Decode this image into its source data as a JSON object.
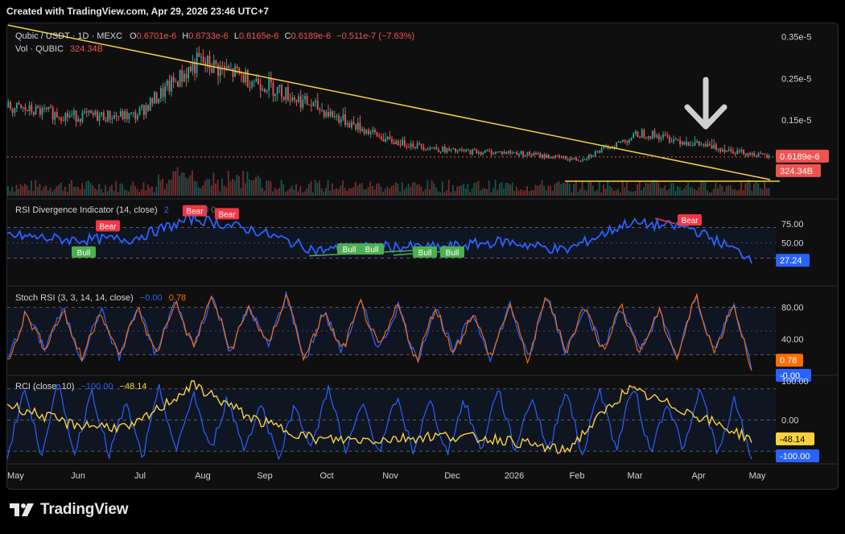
{
  "header": {
    "created_text": "Created with TradingView.com, Apr 29, 2026 23:46 UTC+7"
  },
  "footer": {
    "brand": "TradingView"
  },
  "colors": {
    "up": "#26a69a",
    "down": "#ef5350",
    "rsi": "#2962ff",
    "stoch_k": "#2962ff",
    "stoch_d": "#ff6d00",
    "rci_fast": "#2962ff",
    "rci_slow": "#f7d23e",
    "trendline": "#f7d23e",
    "bear": "#f23645",
    "bull": "#4caf50",
    "arrow": "#cfcfcf"
  },
  "price_pane": {
    "symbol": "Qubic / USDT · 1D · MEXC",
    "o_label": "O",
    "o": "0.6701e-6",
    "h_label": "H",
    "h": "0.6733e-6",
    "l_label": "L",
    "l": "0.6165e-6",
    "c_label": "C",
    "c": "0.6189e-6",
    "change": "−0.511e-7 (−7.63%)",
    "vol_label": "Vol · QUBIC",
    "vol": "324.34B",
    "price_badge": "0.6189e-6",
    "vol_badge": "324.34B",
    "arrow_icon": "down-arrow-icon",
    "y_ticks": [
      "0.35e-5",
      "0.25e-5",
      "0.15e-5"
    ]
  },
  "rsi_pane": {
    "title": "RSI Divergence Indicator (14, close)",
    "title_tail": "2",
    "faded_values": "0 0",
    "value": "27.24",
    "y_ticks": [
      "75.00",
      "50.00"
    ],
    "labels": [
      {
        "text": "Bear",
        "kind": "bear",
        "month": "Jun"
      },
      {
        "text": "Bull",
        "kind": "bull",
        "month": "Jun"
      },
      {
        "text": "Bear",
        "kind": "bear",
        "month": "Aug"
      },
      {
        "text": "Bear",
        "kind": "bear",
        "month": "Aug"
      },
      {
        "text": "Bull",
        "kind": "bull",
        "month": "Oct"
      },
      {
        "text": "Bull",
        "kind": "bull",
        "month": "Oct"
      },
      {
        "text": "Bull",
        "kind": "bull",
        "month": "Nov"
      },
      {
        "text": "Bull",
        "kind": "bull",
        "month": "Dec"
      },
      {
        "text": "Bear",
        "kind": "bear",
        "month": "Mar"
      }
    ]
  },
  "stoch_pane": {
    "title": "Stoch RSI (3, 3, 14, 14, close)",
    "k_value": "−0.00",
    "d_value": "0.78",
    "y_ticks": [
      "80.00",
      "40.00"
    ],
    "badge_d": "0.78",
    "badge_k": "-0.00"
  },
  "rci_pane": {
    "title": "RCI (close, 10)",
    "fast_value": "−100.00",
    "slow_value": "−48.14",
    "y_ticks": [
      "100.00",
      "0.00"
    ],
    "badge_slow": "-48.14",
    "badge_fast": "-100.00"
  },
  "x_axis": {
    "labels": [
      "May",
      "Jun",
      "Jul",
      "Aug",
      "Sep",
      "Oct",
      "Nov",
      "Dec",
      "2026",
      "Feb",
      "Mar",
      "Apr",
      "May"
    ]
  },
  "chart_data": [
    {
      "type": "candlestick",
      "title": "Qubic / USDT · 1D · MEXC",
      "x": [
        "May",
        "Jun",
        "Jul",
        "Aug",
        "Sep",
        "Oct",
        "Nov",
        "Dec",
        "2026",
        "Feb",
        "Mar",
        "Apr",
        "May"
      ],
      "close": [
        1.8e-06,
        1.6e-06,
        1.6e-06,
        2.9e-06,
        2.4e-06,
        1.7e-06,
        1e-06,
        7.6e-07,
        7.2e-07,
        5.5e-07,
        1.2e-06,
        8.8e-07,
        6.189e-07
      ],
      "high": [
        2e-06,
        1.9e-06,
        1.8e-06,
        3.4e-06,
        2.8e-06,
        2.2e-06,
        1.4e-06,
        9e-07,
        8.5e-07,
        6.5e-07,
        1.35e-06,
        1.3e-06,
        7.3e-07
      ],
      "last_close": 6.189e-07,
      "y_ticks": [
        3.5e-06,
        2.5e-06,
        1.5e-06
      ],
      "volume_last": "324.34B"
    },
    {
      "type": "line",
      "title": "RSI Divergence Indicator (14, close)",
      "x": [
        "May",
        "Jun",
        "Jul",
        "Aug",
        "Sep",
        "Oct",
        "Nov",
        "Dec",
        "2026",
        "Feb",
        "Mar",
        "Apr",
        "May"
      ],
      "series": [
        {
          "name": "RSI",
          "values": [
            60,
            54,
            55,
            82,
            66,
            40,
            45,
            44,
            52,
            40,
            76,
            70,
            30
          ]
        }
      ],
      "last_value": 27.24,
      "ylim": [
        0,
        100
      ],
      "y_ticks": [
        75,
        50
      ]
    },
    {
      "type": "line",
      "title": "Stoch RSI (3, 3, 14, 14, close)",
      "x": [
        "May",
        "Jun",
        "Jul",
        "Aug",
        "Sep",
        "Oct",
        "Nov",
        "Dec",
        "2026",
        "Feb",
        "Mar",
        "Apr",
        "May"
      ],
      "k_last": 0.0,
      "d_last": 0.78,
      "ylim": [
        0,
        100
      ],
      "y_ticks": [
        80,
        40
      ]
    },
    {
      "type": "line",
      "title": "RCI (close, 10)",
      "x": [
        "May",
        "Jun",
        "Jul",
        "Aug",
        "Sep",
        "Oct",
        "Nov",
        "Dec",
        "2026",
        "Feb",
        "Mar",
        "Apr",
        "May"
      ],
      "series": [
        {
          "name": "fast",
          "values": [
            50,
            0,
            -40,
            80,
            20,
            -50,
            -60,
            -30,
            -60,
            -80,
            60,
            -20,
            -100
          ]
        },
        {
          "name": "slow",
          "values": [
            40,
            -10,
            -20,
            90,
            0,
            -50,
            -50,
            -40,
            -50,
            -80,
            80,
            20,
            -48.14
          ]
        }
      ],
      "fast_last": -100.0,
      "slow_last": -48.14,
      "ylim": [
        -100,
        100
      ],
      "y_ticks": [
        100,
        0
      ]
    }
  ]
}
